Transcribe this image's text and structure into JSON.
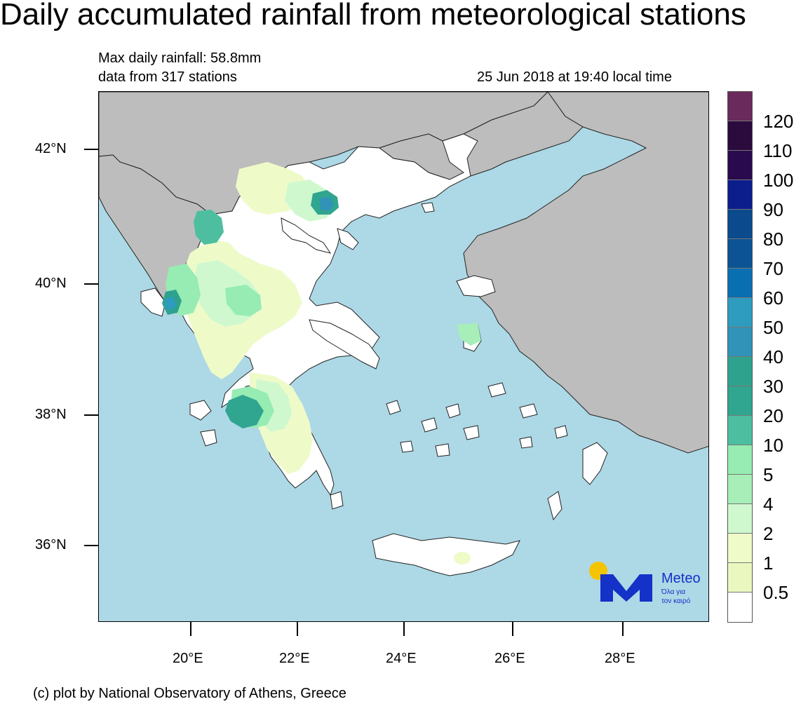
{
  "title": "Daily accumulated rainfall from meteorological stations",
  "info": {
    "max_rainfall": "Max daily rainfall: 58.8mm",
    "stations": "data from 317 stations",
    "timestamp": "25 Jun 2018 at 19:40 local time"
  },
  "axes": {
    "lat_labels": [
      "42°N",
      "40°N",
      "38°N",
      "36°N"
    ],
    "lon_labels": [
      "20°E",
      "22°E",
      "24°E",
      "26°E",
      "28°E"
    ]
  },
  "colorbar": {
    "labels": [
      "120",
      "110",
      "100",
      "90",
      "80",
      "70",
      "60",
      "50",
      "40",
      "30",
      "20",
      "10",
      "5",
      "4",
      "2",
      "1",
      "0.5"
    ],
    "colors": [
      "#6b2a5c",
      "#2b0a3d",
      "#2a0a4e",
      "#0c1e8c",
      "#0b4a8c",
      "#0b5394",
      "#0a6fb0",
      "#2e9cbf",
      "#3193b8",
      "#2fa28e",
      "#30a58f",
      "#4dbfa0",
      "#96ecb2",
      "#a7eeb8",
      "#cff8cf",
      "#effbc8",
      "#eaf8c0",
      "#ffffff"
    ]
  },
  "logo": {
    "brand": "Meteo",
    "tagline_line1": "Όλα για",
    "tagline_line2": "τον καιρό"
  },
  "credit": "(c) plot by National Observatory of Athens, Greece"
}
